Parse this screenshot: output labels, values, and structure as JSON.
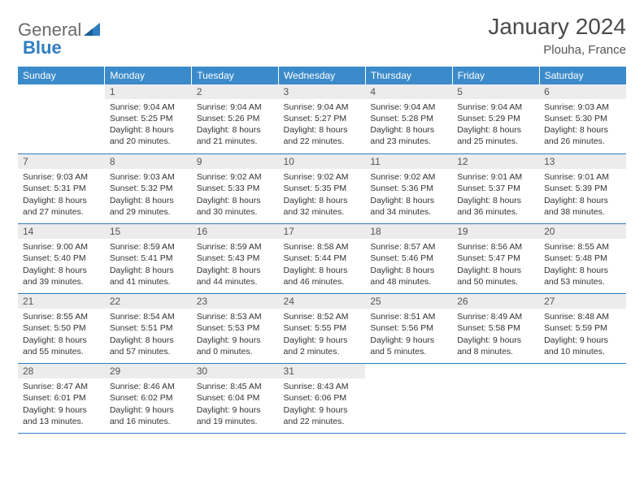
{
  "logo": {
    "text1": "General",
    "text2": "Blue"
  },
  "title": "January 2024",
  "location": "Plouha, France",
  "theme": {
    "header_bg": "#3b8bca",
    "header_text": "#ffffff",
    "rule_color": "#2f7dc0",
    "daynum_bg": "#ececec",
    "text_color": "#333333",
    "logo_gray": "#6b6b6b",
    "logo_blue": "#2f7dc0"
  },
  "weekdays": [
    "Sunday",
    "Monday",
    "Tuesday",
    "Wednesday",
    "Thursday",
    "Friday",
    "Saturday"
  ],
  "weeks": [
    [
      {
        "n": "",
        "sr": "",
        "ss": "",
        "dl": ""
      },
      {
        "n": "1",
        "sr": "Sunrise: 9:04 AM",
        "ss": "Sunset: 5:25 PM",
        "dl": "Daylight: 8 hours and 20 minutes."
      },
      {
        "n": "2",
        "sr": "Sunrise: 9:04 AM",
        "ss": "Sunset: 5:26 PM",
        "dl": "Daylight: 8 hours and 21 minutes."
      },
      {
        "n": "3",
        "sr": "Sunrise: 9:04 AM",
        "ss": "Sunset: 5:27 PM",
        "dl": "Daylight: 8 hours and 22 minutes."
      },
      {
        "n": "4",
        "sr": "Sunrise: 9:04 AM",
        "ss": "Sunset: 5:28 PM",
        "dl": "Daylight: 8 hours and 23 minutes."
      },
      {
        "n": "5",
        "sr": "Sunrise: 9:04 AM",
        "ss": "Sunset: 5:29 PM",
        "dl": "Daylight: 8 hours and 25 minutes."
      },
      {
        "n": "6",
        "sr": "Sunrise: 9:03 AM",
        "ss": "Sunset: 5:30 PM",
        "dl": "Daylight: 8 hours and 26 minutes."
      }
    ],
    [
      {
        "n": "7",
        "sr": "Sunrise: 9:03 AM",
        "ss": "Sunset: 5:31 PM",
        "dl": "Daylight: 8 hours and 27 minutes."
      },
      {
        "n": "8",
        "sr": "Sunrise: 9:03 AM",
        "ss": "Sunset: 5:32 PM",
        "dl": "Daylight: 8 hours and 29 minutes."
      },
      {
        "n": "9",
        "sr": "Sunrise: 9:02 AM",
        "ss": "Sunset: 5:33 PM",
        "dl": "Daylight: 8 hours and 30 minutes."
      },
      {
        "n": "10",
        "sr": "Sunrise: 9:02 AM",
        "ss": "Sunset: 5:35 PM",
        "dl": "Daylight: 8 hours and 32 minutes."
      },
      {
        "n": "11",
        "sr": "Sunrise: 9:02 AM",
        "ss": "Sunset: 5:36 PM",
        "dl": "Daylight: 8 hours and 34 minutes."
      },
      {
        "n": "12",
        "sr": "Sunrise: 9:01 AM",
        "ss": "Sunset: 5:37 PM",
        "dl": "Daylight: 8 hours and 36 minutes."
      },
      {
        "n": "13",
        "sr": "Sunrise: 9:01 AM",
        "ss": "Sunset: 5:39 PM",
        "dl": "Daylight: 8 hours and 38 minutes."
      }
    ],
    [
      {
        "n": "14",
        "sr": "Sunrise: 9:00 AM",
        "ss": "Sunset: 5:40 PM",
        "dl": "Daylight: 8 hours and 39 minutes."
      },
      {
        "n": "15",
        "sr": "Sunrise: 8:59 AM",
        "ss": "Sunset: 5:41 PM",
        "dl": "Daylight: 8 hours and 41 minutes."
      },
      {
        "n": "16",
        "sr": "Sunrise: 8:59 AM",
        "ss": "Sunset: 5:43 PM",
        "dl": "Daylight: 8 hours and 44 minutes."
      },
      {
        "n": "17",
        "sr": "Sunrise: 8:58 AM",
        "ss": "Sunset: 5:44 PM",
        "dl": "Daylight: 8 hours and 46 minutes."
      },
      {
        "n": "18",
        "sr": "Sunrise: 8:57 AM",
        "ss": "Sunset: 5:46 PM",
        "dl": "Daylight: 8 hours and 48 minutes."
      },
      {
        "n": "19",
        "sr": "Sunrise: 8:56 AM",
        "ss": "Sunset: 5:47 PM",
        "dl": "Daylight: 8 hours and 50 minutes."
      },
      {
        "n": "20",
        "sr": "Sunrise: 8:55 AM",
        "ss": "Sunset: 5:48 PM",
        "dl": "Daylight: 8 hours and 53 minutes."
      }
    ],
    [
      {
        "n": "21",
        "sr": "Sunrise: 8:55 AM",
        "ss": "Sunset: 5:50 PM",
        "dl": "Daylight: 8 hours and 55 minutes."
      },
      {
        "n": "22",
        "sr": "Sunrise: 8:54 AM",
        "ss": "Sunset: 5:51 PM",
        "dl": "Daylight: 8 hours and 57 minutes."
      },
      {
        "n": "23",
        "sr": "Sunrise: 8:53 AM",
        "ss": "Sunset: 5:53 PM",
        "dl": "Daylight: 9 hours and 0 minutes."
      },
      {
        "n": "24",
        "sr": "Sunrise: 8:52 AM",
        "ss": "Sunset: 5:55 PM",
        "dl": "Daylight: 9 hours and 2 minutes."
      },
      {
        "n": "25",
        "sr": "Sunrise: 8:51 AM",
        "ss": "Sunset: 5:56 PM",
        "dl": "Daylight: 9 hours and 5 minutes."
      },
      {
        "n": "26",
        "sr": "Sunrise: 8:49 AM",
        "ss": "Sunset: 5:58 PM",
        "dl": "Daylight: 9 hours and 8 minutes."
      },
      {
        "n": "27",
        "sr": "Sunrise: 8:48 AM",
        "ss": "Sunset: 5:59 PM",
        "dl": "Daylight: 9 hours and 10 minutes."
      }
    ],
    [
      {
        "n": "28",
        "sr": "Sunrise: 8:47 AM",
        "ss": "Sunset: 6:01 PM",
        "dl": "Daylight: 9 hours and 13 minutes."
      },
      {
        "n": "29",
        "sr": "Sunrise: 8:46 AM",
        "ss": "Sunset: 6:02 PM",
        "dl": "Daylight: 9 hours and 16 minutes."
      },
      {
        "n": "30",
        "sr": "Sunrise: 8:45 AM",
        "ss": "Sunset: 6:04 PM",
        "dl": "Daylight: 9 hours and 19 minutes."
      },
      {
        "n": "31",
        "sr": "Sunrise: 8:43 AM",
        "ss": "Sunset: 6:06 PM",
        "dl": "Daylight: 9 hours and 22 minutes."
      },
      {
        "n": "",
        "sr": "",
        "ss": "",
        "dl": ""
      },
      {
        "n": "",
        "sr": "",
        "ss": "",
        "dl": ""
      },
      {
        "n": "",
        "sr": "",
        "ss": "",
        "dl": ""
      }
    ]
  ]
}
